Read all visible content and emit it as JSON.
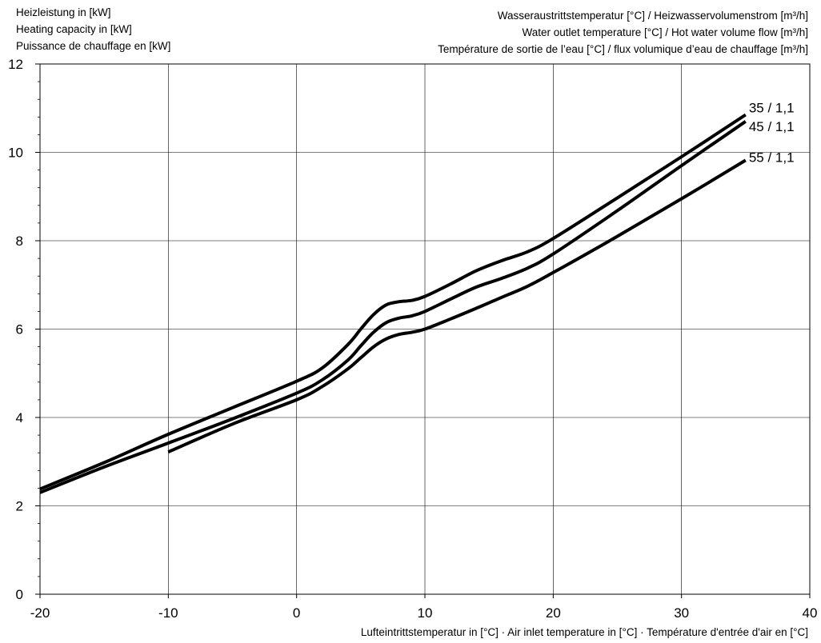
{
  "chart_data": {
    "type": "line",
    "ylabel": [
      "Heizleistung in [kW]",
      "Heating capacity in [kW]",
      "Puissance de chauffage en [kW]"
    ],
    "legend_title": [
      "Wasseraustrittstemperatur [°C] / Heizwasservolumenstrom [m³/h]",
      "Water outlet temperature [°C] / Hot water volume flow [m³/h]",
      "Température de sortie de l’eau [°C] / flux volumique d’eau de chauffage [m³/h]"
    ],
    "xlabel": "Lufteintrittstemperatur in [°C] · Air inlet temperature in [°C] · Température d'entrée d'air en [°C]",
    "xlim": [
      -20,
      40
    ],
    "ylim": [
      0,
      12
    ],
    "x_ticks": [
      -20,
      -10,
      0,
      10,
      20,
      30,
      40
    ],
    "y_ticks": [
      0,
      2,
      4,
      6,
      8,
      10,
      12
    ],
    "y_minor_step": 0.4,
    "grid": true,
    "series": [
      {
        "name": "35 / 1,1",
        "points": [
          [
            -20,
            2.38
          ],
          [
            -15,
            2.98
          ],
          [
            -10,
            3.62
          ],
          [
            -5,
            4.22
          ],
          [
            0,
            4.82
          ],
          [
            2,
            5.12
          ],
          [
            4,
            5.65
          ],
          [
            5,
            6.0
          ],
          [
            6,
            6.33
          ],
          [
            7,
            6.55
          ],
          [
            8,
            6.62
          ],
          [
            9,
            6.65
          ],
          [
            10,
            6.74
          ],
          [
            12,
            7.02
          ],
          [
            14,
            7.32
          ],
          [
            16,
            7.55
          ],
          [
            18,
            7.75
          ],
          [
            20,
            8.05
          ],
          [
            25,
            8.97
          ],
          [
            30,
            9.9
          ],
          [
            35,
            10.85
          ]
        ]
      },
      {
        "name": "45 / 1,1",
        "points": [
          [
            -20,
            2.3
          ],
          [
            -15,
            2.88
          ],
          [
            -10,
            3.42
          ],
          [
            -5,
            3.97
          ],
          [
            0,
            4.55
          ],
          [
            2,
            4.85
          ],
          [
            4,
            5.3
          ],
          [
            5,
            5.62
          ],
          [
            6,
            5.93
          ],
          [
            7,
            6.15
          ],
          [
            8,
            6.25
          ],
          [
            9,
            6.3
          ],
          [
            10,
            6.4
          ],
          [
            12,
            6.68
          ],
          [
            14,
            6.95
          ],
          [
            16,
            7.15
          ],
          [
            18,
            7.38
          ],
          [
            20,
            7.7
          ],
          [
            25,
            8.68
          ],
          [
            30,
            9.7
          ],
          [
            35,
            10.7
          ]
        ]
      },
      {
        "name": "55 / 1,1",
        "points": [
          [
            -10,
            3.22
          ],
          [
            -5,
            3.85
          ],
          [
            0,
            4.4
          ],
          [
            2,
            4.7
          ],
          [
            4,
            5.1
          ],
          [
            5,
            5.35
          ],
          [
            6,
            5.6
          ],
          [
            7,
            5.78
          ],
          [
            8,
            5.88
          ],
          [
            9,
            5.93
          ],
          [
            10,
            6.0
          ],
          [
            12,
            6.23
          ],
          [
            14,
            6.47
          ],
          [
            16,
            6.72
          ],
          [
            18,
            6.97
          ],
          [
            20,
            7.28
          ],
          [
            25,
            8.1
          ],
          [
            30,
            8.95
          ],
          [
            35,
            9.82
          ]
        ]
      }
    ]
  }
}
